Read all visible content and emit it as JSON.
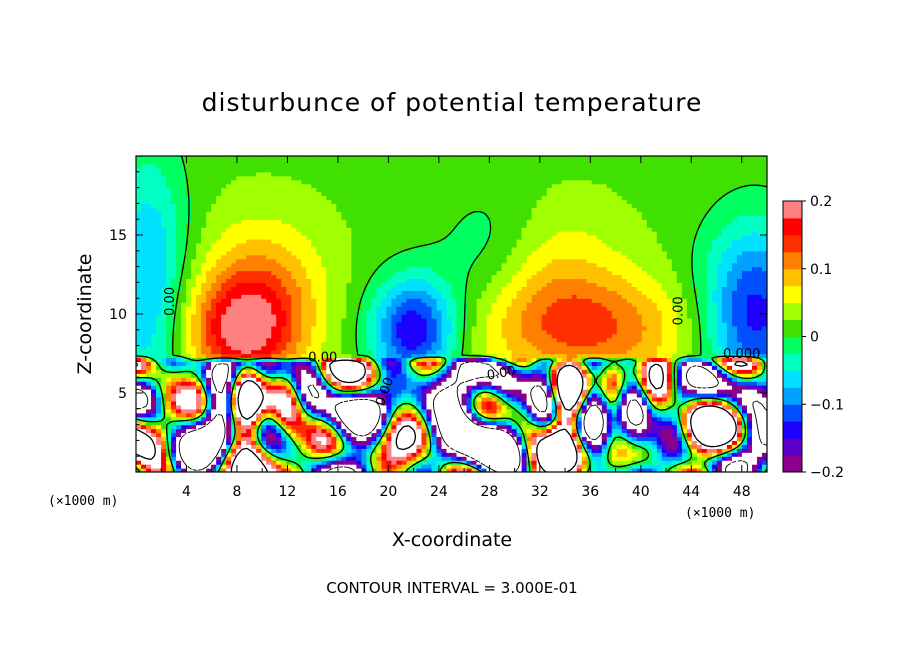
{
  "colors": {
    "scale": [
      "#8b008b",
      "#5a00c8",
      "#1e00ff",
      "#0050ff",
      "#00a0ff",
      "#00e0ff",
      "#00ffc0",
      "#00ff60",
      "#40e000",
      "#a0ff00",
      "#ffff00",
      "#ffc000",
      "#ff8000",
      "#ff3000",
      "#ff0000",
      "#ff8080"
    ],
    "zero": "#40e000",
    "line": "#000000"
  },
  "chart_data": {
    "type": "heatmap",
    "title": "disturbunce of potential temperature",
    "xlabel": "X-coordinate",
    "ylabel": "Z-coordinate",
    "x_unit_left": "(×1000 m)",
    "x_unit_right": "(×1000 m)",
    "xlim": [
      0,
      50
    ],
    "ylim": [
      0,
      20
    ],
    "x_ticks": [
      "4",
      "8",
      "12",
      "16",
      "20",
      "24",
      "28",
      "32",
      "36",
      "40",
      "44",
      "48"
    ],
    "y_ticks": [
      "5",
      "10",
      "15"
    ],
    "colorbar": {
      "min": -0.2,
      "max": 0.2,
      "tick_labels": [
        "0.2",
        "0.1",
        "0",
        "−0.1",
        "−0.2"
      ]
    },
    "contour_labels": [
      "0.00",
      "0.00",
      "0.00",
      "0.00",
      "0.00",
      "0.000"
    ],
    "contour_interval_text": "CONTOUR INTERVAL = 3.000E-01",
    "description_upper": "smooth field above z≈7.5 km: positive (yellow–red) near x≈8, 30–40; negative (blue) near x≈2, 22, 45–50",
    "description_lower": "strong ±0.2+ disturbances below z≈7.5 km with white (out-of-range) regions"
  }
}
